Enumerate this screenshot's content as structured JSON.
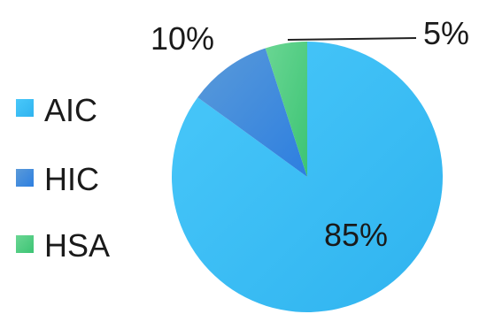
{
  "chart_data": {
    "type": "pie",
    "title": "",
    "legend_position": "left",
    "slices": [
      {
        "label": "AIC",
        "value": 85,
        "data_label": "85%",
        "color": "#3fbff5"
      },
      {
        "label": "HIC",
        "value": 10,
        "data_label": "10%",
        "color": "#3d8ede"
      },
      {
        "label": "HSA",
        "value": 5,
        "data_label": "5%",
        "color": "#4fd081"
      }
    ]
  }
}
